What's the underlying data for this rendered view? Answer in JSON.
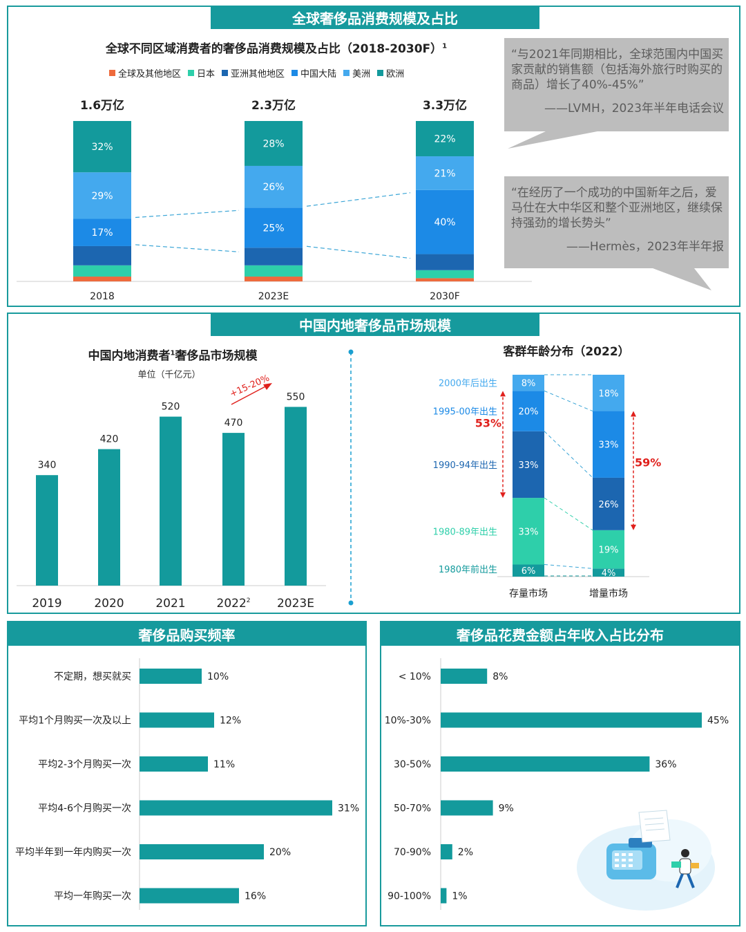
{
  "colors": {
    "teal": "#139a9c",
    "teal_dark": "#0e8c8f",
    "navy": "#1c66b0",
    "blue": "#1c8ae6",
    "sky": "#44a9ee",
    "mint": "#2ecfaa",
    "orange": "#ee6a3c",
    "red": "#e0201c",
    "quote_bg": "#bdbdbd"
  },
  "section1": {
    "banner": "全球奢侈品消费规模及占比",
    "chart_title": "全球不同区域消费者的奢侈品消费规模及占比（2018-2030F）",
    "chart_title_sup": "1",
    "quote1": {
      "text": "“与2021年同期相比，全球范围内中国买家贡献的销售额（包括海外旅行时购买的商品）增长了40%-45%”",
      "source": "——LVMH，2023年半年电话会议"
    },
    "quote2": {
      "text": "“在经历了一个成功的中国新年之后，爱马仕在大中华区和整个亚洲地区，继续保持强劲的增长势头”",
      "source": "——Hermès，2023年半年报"
    }
  },
  "section2": {
    "banner": "中国内地奢侈品市场规模"
  },
  "section3": {
    "banner": "奢侈品购买频率"
  },
  "section4": {
    "banner": "奢侈品花费金额占年收入占比分布"
  },
  "chart_data": [
    {
      "type": "bar",
      "stacked": true,
      "categories": [
        "2018",
        "2023E",
        "2030F"
      ],
      "totals": [
        "1.6万亿",
        "2.3万亿",
        "3.3万亿"
      ],
      "legend": [
        "全球及其他地区",
        "日本",
        "亚洲其他地区",
        "中国大陆",
        "美洲",
        "欧洲"
      ],
      "series": [
        {
          "name": "全球及其他地区",
          "color": "#ee6a3c",
          "values": [
            3,
            3,
            2
          ]
        },
        {
          "name": "日本",
          "color": "#2ecfaa",
          "values": [
            7,
            7,
            5
          ]
        },
        {
          "name": "亚洲其他地区",
          "color": "#1c66b0",
          "values": [
            12,
            11,
            10
          ]
        },
        {
          "name": "中国大陆",
          "color": "#1c8ae6",
          "values": [
            17,
            25,
            40
          ]
        },
        {
          "name": "美洲",
          "color": "#44a9ee",
          "values": [
            29,
            26,
            21
          ]
        },
        {
          "name": "欧洲",
          "color": "#139a9c",
          "values": [
            32,
            28,
            22
          ]
        }
      ],
      "data_labels": [
        [
          "",
          "",
          "",
          "17%",
          "29%",
          "32%"
        ],
        [
          "",
          "",
          "",
          "25%",
          "26%",
          "28%"
        ],
        [
          "",
          "",
          "",
          "40%",
          "21%",
          "22%"
        ]
      ]
    },
    {
      "type": "bar",
      "title": "中国内地消费者",
      "title_sup": "1",
      "title_tail": "奢侈品市场规模",
      "unit": "单位（千亿元）",
      "categories": [
        "2019",
        "2020",
        "2021",
        "2022",
        "2023E"
      ],
      "category_sups": [
        "",
        "",
        "",
        "2",
        ""
      ],
      "values": [
        340,
        420,
        520,
        470,
        550
      ],
      "growth_annotation": "+15-20%",
      "color": "#139a9c"
    },
    {
      "type": "bar",
      "stacked": true,
      "title": "客群年龄分布（2022）",
      "categories": [
        "存量市场",
        "增量市场"
      ],
      "series": [
        {
          "name": "1980年前出生",
          "color": "#139a9c",
          "values": [
            6,
            4
          ]
        },
        {
          "name": "1980-89年出生",
          "color": "#2ecfaa",
          "values": [
            33,
            19
          ]
        },
        {
          "name": "1990-94年出生",
          "color": "#1c66b0",
          "values": [
            33,
            26
          ]
        },
        {
          "name": "1995-00年出生",
          "color": "#1c8ae6",
          "values": [
            20,
            33
          ]
        },
        {
          "name": "2000年后出生",
          "color": "#44a9ee",
          "values": [
            8,
            18
          ]
        }
      ],
      "highlights": [
        "53%",
        "59%"
      ]
    },
    {
      "type": "bar",
      "orientation": "horizontal",
      "title": "奢侈品购买频率",
      "categories": [
        "不定期，想买就买",
        "平均1个月购买一次及以上",
        "平均2-3个月购买一次",
        "平均4-6个月购买一次",
        "平均半年到一年内购买一次",
        "平均一年购买一次"
      ],
      "values": [
        10,
        12,
        11,
        31,
        20,
        16
      ],
      "labels": [
        "10%",
        "12%",
        "11%",
        "31%",
        "20%",
        "16%"
      ],
      "color": "#139a9c"
    },
    {
      "type": "bar",
      "orientation": "horizontal",
      "title": "奢侈品花费金额占年收入占比分布",
      "categories": [
        "< 10%",
        "10%-30%",
        "30-50%",
        "50-70%",
        "70-90%",
        "90-100%"
      ],
      "values": [
        8,
        45,
        36,
        9,
        2,
        1
      ],
      "labels": [
        "8%",
        "45%",
        "36%",
        "9%",
        "2%",
        "1%"
      ],
      "color": "#139a9c"
    }
  ]
}
